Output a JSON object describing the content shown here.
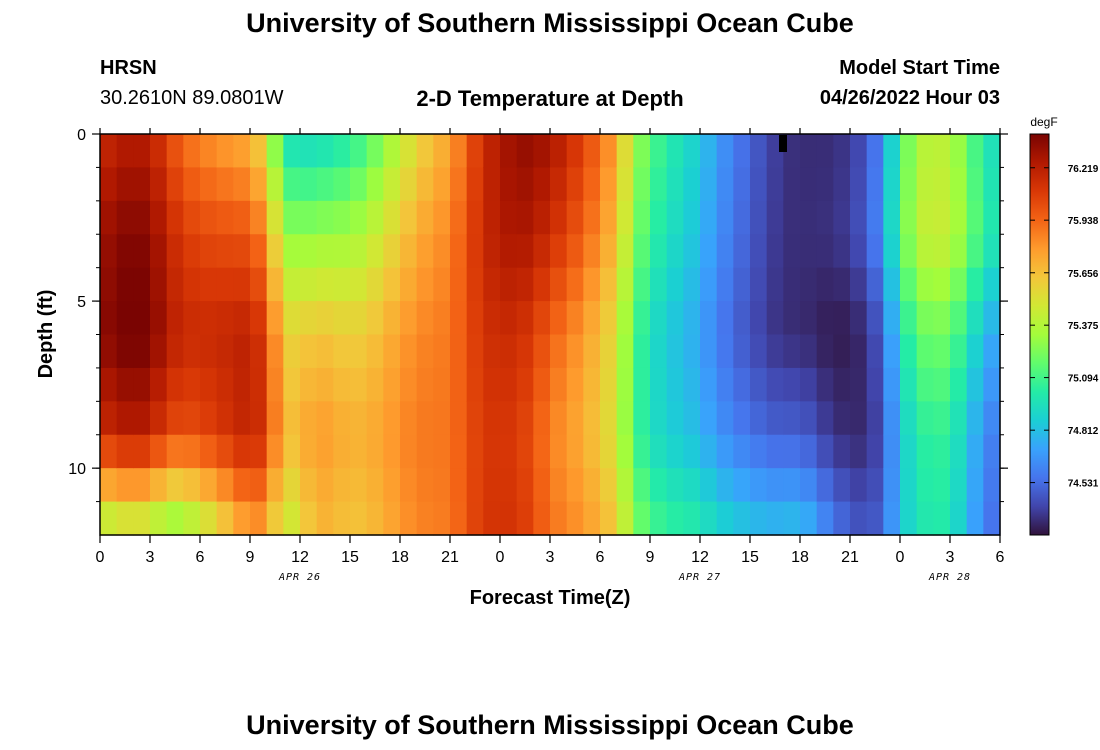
{
  "header": {
    "title": "University of Southern Mississippi Ocean Cube",
    "station": "HRSN",
    "coords": "30.2610N  89.0801W",
    "subtitle": "2-D Temperature at Depth",
    "model_label": "Model Start Time",
    "model_time": "04/26/2022 Hour 03"
  },
  "footer": {
    "title": "University of Southern Mississippi Ocean Cube"
  },
  "chart_data": {
    "type": "heatmap",
    "title": "2-D Temperature at Depth",
    "xlabel": "Forecast Time(Z)",
    "ylabel": "Depth (ft)",
    "x_range_hours": [
      0,
      54
    ],
    "y_range_ft": [
      0,
      12
    ],
    "x_ticks": [
      {
        "hour": 0,
        "label": "0"
      },
      {
        "hour": 3,
        "label": "3"
      },
      {
        "hour": 6,
        "label": "6"
      },
      {
        "hour": 9,
        "label": "9"
      },
      {
        "hour": 12,
        "label": "12"
      },
      {
        "hour": 15,
        "label": "15"
      },
      {
        "hour": 18,
        "label": "18"
      },
      {
        "hour": 21,
        "label": "21"
      },
      {
        "hour": 24,
        "label": "0"
      },
      {
        "hour": 27,
        "label": "3"
      },
      {
        "hour": 30,
        "label": "6"
      },
      {
        "hour": 33,
        "label": "9"
      },
      {
        "hour": 36,
        "label": "12"
      },
      {
        "hour": 39,
        "label": "15"
      },
      {
        "hour": 42,
        "label": "18"
      },
      {
        "hour": 45,
        "label": "21"
      },
      {
        "hour": 48,
        "label": "0"
      },
      {
        "hour": 51,
        "label": "3"
      },
      {
        "hour": 54,
        "label": "6"
      }
    ],
    "date_labels": [
      {
        "hour": 12,
        "label": "APR 26"
      },
      {
        "hour": 36,
        "label": "APR 27"
      },
      {
        "hour": 51,
        "label": "APR 28"
      }
    ],
    "y_ticks": [
      {
        "value": 0,
        "label": "0"
      },
      {
        "value": 5,
        "label": "5"
      },
      {
        "value": 10,
        "label": "10"
      }
    ],
    "colorbar": {
      "units": "degF",
      "min": 74.25,
      "max": 76.4,
      "labels": [
        "76.219",
        "75.938",
        "75.656",
        "75.375",
        "75.094",
        "74.812",
        "74.531"
      ],
      "colors": [
        "#30123b",
        "#4145ab",
        "#4675ed",
        "#39a2fc",
        "#1bcfd4",
        "#24eca6",
        "#61fc6c",
        "#a4fc3b",
        "#d1e834",
        "#f3c63a",
        "#fe9b2d",
        "#f36315",
        "#d93806",
        "#b11901",
        "#7a0402"
      ]
    },
    "temperature_profile": {
      "time_hours": [
        0,
        1,
        2,
        3,
        4,
        5,
        6,
        7,
        8,
        9,
        10,
        11,
        12,
        13,
        14,
        15,
        16,
        17,
        18,
        19,
        20,
        21,
        22,
        23,
        24,
        25,
        26,
        27,
        28,
        29,
        30,
        31,
        32,
        33,
        34,
        35,
        36,
        37,
        38,
        39,
        40,
        41,
        42,
        43,
        44,
        45,
        46,
        47,
        48,
        49,
        50,
        51,
        52,
        53,
        54
      ],
      "surface_degF": [
        76.14,
        76.2,
        76.24,
        76.2,
        76.05,
        75.9,
        75.84,
        75.78,
        75.75,
        75.7,
        75.5,
        74.95,
        74.9,
        74.9,
        74.95,
        75.0,
        75.1,
        75.25,
        75.4,
        75.55,
        75.65,
        75.75,
        75.95,
        76.15,
        76.25,
        76.33,
        76.33,
        76.28,
        76.18,
        76.06,
        75.92,
        75.75,
        75.35,
        75.15,
        75.02,
        74.95,
        74.85,
        74.7,
        74.6,
        74.5,
        74.42,
        74.35,
        74.33,
        74.33,
        74.33,
        74.37,
        74.45,
        74.65,
        75.1,
        75.35,
        75.42,
        75.38,
        75.2,
        75.0,
        74.9
      ],
      "depth_sample_ft": [
        0,
        3,
        6,
        9,
        12
      ],
      "depth_sample_degF_at_hour_4": [
        76.05,
        76.2,
        76.25,
        76.05,
        75.2
      ],
      "depth_sample_degF_at_hour_13": [
        74.9,
        75.3,
        75.65,
        75.8,
        75.7
      ],
      "depth_sample_degF_at_hour_27": [
        76.28,
        76.15,
        75.95,
        75.85,
        75.9
      ],
      "depth_sample_degF_at_hour_42": [
        74.33,
        74.33,
        74.33,
        74.5,
        74.85
      ],
      "depth_sample_degF_at_hour_49": [
        75.35,
        75.4,
        75.15,
        75.0,
        74.95
      ]
    }
  }
}
